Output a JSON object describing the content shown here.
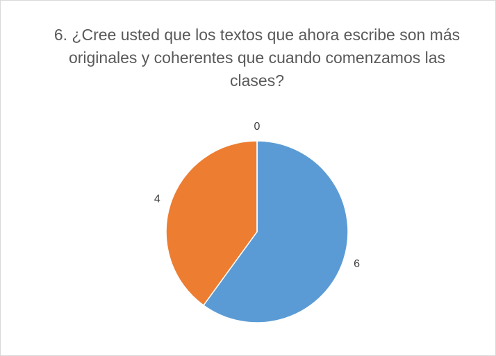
{
  "chart_data": {
    "type": "pie",
    "title": "6. ¿Cree usted que los textos que ahora escribe son más originales y coherentes que cuando comenzamos las clases?",
    "categories": [
      null,
      null,
      null
    ],
    "values": [
      6,
      4,
      0
    ],
    "colors": [
      "#5b9bd5",
      "#ed7d31",
      "#a5a5a5"
    ]
  }
}
